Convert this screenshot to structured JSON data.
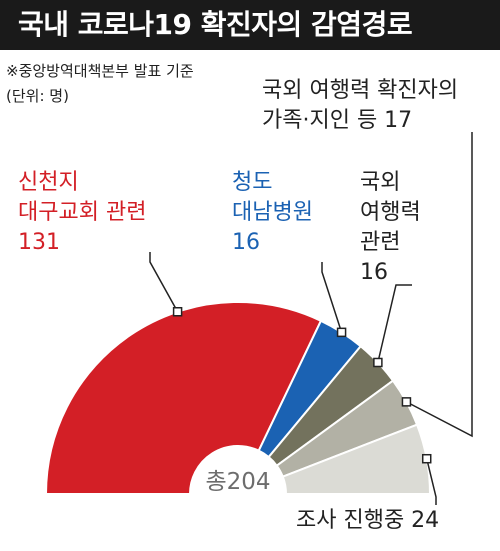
{
  "header": {
    "title": "국내 코로나19 확진자의 감염경로"
  },
  "notes": {
    "source": "※중앙방역대책본부 발표 기준",
    "unit": "(단위: 명)"
  },
  "colors": {
    "shincheonji": "#d31f26",
    "cheongdo": "#1b62b3",
    "overseas": "#73725d",
    "family": "#b2b1a5",
    "investigation": "#dbdbd5",
    "leader": "#222222"
  },
  "chart_data": {
    "type": "pie",
    "shape": "half-donut",
    "total_label": "총204",
    "total": 204,
    "slices": [
      {
        "key": "shincheonji",
        "label_line1": "신천지",
        "label_line2": "대구교회 관련",
        "value": 131,
        "value_label": "131"
      },
      {
        "key": "cheongdo",
        "label_line1": "청도",
        "label_line2": "대남병원",
        "value": 16,
        "value_label": "16"
      },
      {
        "key": "overseas",
        "label_line1": "국외",
        "label_line2": "여행력",
        "label_line3": "관련",
        "value": 16,
        "value_label": "16"
      },
      {
        "key": "family",
        "label_line1": "국외 여행력 확진자의",
        "label_line2": "가족·지인 등 17",
        "value": 17
      },
      {
        "key": "investigation",
        "label_line1": "조사 진행중 24",
        "value": 24
      }
    ]
  }
}
